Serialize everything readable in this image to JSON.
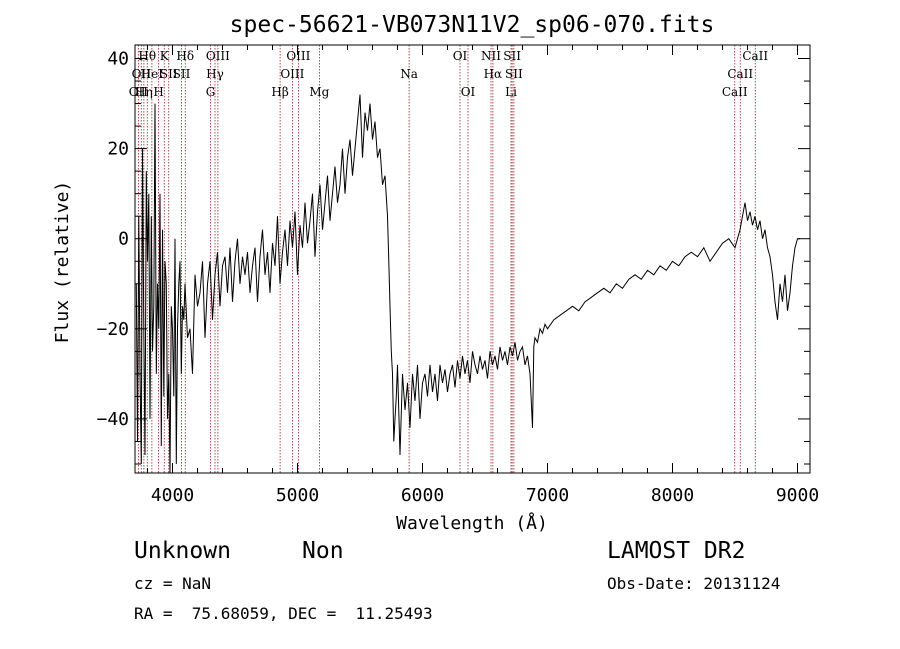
{
  "chart_data": {
    "type": "line",
    "title": "spec-56621-VB073N11V2_sp06-070.fits",
    "xlabel": "Wavelength (Å)",
    "ylabel": "Flux (relative)",
    "xlim": [
      3700,
      9100
    ],
    "ylim": [
      -52,
      43
    ],
    "xticks": [
      4000,
      5000,
      6000,
      7000,
      8000,
      9000
    ],
    "yticks": [
      -40,
      -20,
      0,
      20,
      40
    ],
    "xticks_labels": [
      "4000",
      "5000",
      "6000",
      "7000",
      "8000",
      "9000"
    ],
    "yticks_labels": [
      "−40",
      "−20",
      "0",
      "20",
      "40"
    ],
    "x_minor_step": 200,
    "y_minor_step": 5,
    "grid": false,
    "line_color": "#000000",
    "marker_color": "#a02020",
    "series": [
      {
        "x": [
          3710,
          3720,
          3730,
          3740,
          3750,
          3760,
          3770,
          3780,
          3790,
          3800,
          3810,
          3820,
          3830,
          3840,
          3850,
          3860,
          3870,
          3880,
          3890,
          3900,
          3910,
          3920,
          3930,
          3940,
          3950,
          3960,
          3970,
          3980,
          3990,
          4000,
          4010,
          4020,
          4030,
          4040,
          4050,
          4060,
          4070,
          4080,
          4090,
          4100,
          4120,
          4140,
          4160,
          4180,
          4200,
          4220,
          4240,
          4260,
          4280,
          4300,
          4320,
          4340,
          4360,
          4380,
          4400,
          4420,
          4440,
          4460,
          4480,
          4500,
          4520,
          4540,
          4560,
          4580,
          4600,
          4620,
          4640,
          4660,
          4680,
          4700,
          4720,
          4740,
          4760,
          4780,
          4800,
          4820,
          4840,
          4860,
          4880,
          4900,
          4920,
          4940,
          4960,
          4980,
          5000,
          5020,
          5040,
          5060,
          5080,
          5100,
          5120,
          5140,
          5160,
          5180,
          5200,
          5220,
          5240,
          5260,
          5280,
          5300,
          5320,
          5340,
          5360,
          5380,
          5400,
          5420,
          5440,
          5460,
          5480,
          5500,
          5520,
          5540,
          5560,
          5580,
          5600,
          5620,
          5640,
          5660,
          5680,
          5700,
          5720,
          5730,
          5740,
          5750,
          5760,
          5770,
          5780,
          5790,
          5800,
          5820,
          5840,
          5860,
          5880,
          5900,
          5920,
          5940,
          5960,
          5980,
          6000,
          6020,
          6040,
          6060,
          6080,
          6100,
          6120,
          6140,
          6160,
          6180,
          6200,
          6220,
          6240,
          6260,
          6280,
          6300,
          6320,
          6340,
          6360,
          6380,
          6400,
          6420,
          6440,
          6460,
          6480,
          6500,
          6520,
          6540,
          6560,
          6580,
          6600,
          6620,
          6640,
          6660,
          6680,
          6700,
          6720,
          6740,
          6760,
          6780,
          6800,
          6820,
          6840,
          6860,
          6880,
          6890,
          6900,
          6920,
          6940,
          6960,
          6980,
          7000,
          7050,
          7100,
          7150,
          7200,
          7250,
          7300,
          7350,
          7400,
          7450,
          7500,
          7550,
          7600,
          7650,
          7700,
          7750,
          7800,
          7850,
          7900,
          7950,
          8000,
          8050,
          8100,
          8150,
          8200,
          8250,
          8300,
          8350,
          8400,
          8450,
          8500,
          8520,
          8540,
          8560,
          8580,
          8600,
          8620,
          8640,
          8660,
          8680,
          8700,
          8720,
          8740,
          8760,
          8780,
          8800,
          8820,
          8840,
          8860,
          8880,
          8900,
          8920,
          8940,
          8960,
          8980,
          9000,
          9020
        ],
        "y": [
          -10,
          -45,
          5,
          -30,
          -50,
          20,
          -20,
          -48,
          15,
          -5,
          10,
          -40,
          5,
          -25,
          -15,
          30,
          -30,
          -10,
          -20,
          10,
          -46,
          2,
          -35,
          -5,
          -10,
          -40,
          -30,
          -52,
          -15,
          -20,
          -35,
          0,
          -50,
          -20,
          -10,
          -5,
          -30,
          -15,
          -18,
          -10,
          -22,
          -20,
          -30,
          -8,
          -15,
          -12,
          -5,
          -22,
          -10,
          -5,
          -18,
          -8,
          -3,
          -15,
          -6,
          -4,
          -12,
          -2,
          -14,
          -5,
          0,
          -10,
          -4,
          -8,
          -3,
          -12,
          -6,
          -2,
          -14,
          -4,
          2,
          -8,
          -3,
          -12,
          -1,
          -6,
          5,
          -10,
          -3,
          2,
          -6,
          4,
          -2,
          6,
          -8,
          3,
          -2,
          8,
          -1,
          4,
          10,
          -4,
          6,
          12,
          2,
          8,
          14,
          4,
          10,
          16,
          8,
          12,
          20,
          10,
          18,
          22,
          14,
          20,
          26,
          32,
          18,
          28,
          24,
          30,
          22,
          26,
          18,
          20,
          12,
          14,
          5,
          -5,
          -15,
          -25,
          -30,
          -45,
          -40,
          -35,
          -28,
          -48,
          -30,
          -38,
          -32,
          -42,
          -30,
          -36,
          -28,
          -40,
          -32,
          -30,
          -35,
          -28,
          -34,
          -30,
          -36,
          -28,
          -32,
          -29,
          -34,
          -30,
          -28,
          -33,
          -27,
          -31,
          -26,
          -30,
          -27,
          -32,
          -25,
          -28,
          -30,
          -26,
          -29,
          -27,
          -31,
          -25,
          -28,
          -26,
          -29,
          -24,
          -27,
          -25,
          -28,
          -24,
          -26,
          -23,
          -27,
          -25,
          -24,
          -28,
          -26,
          -30,
          -42,
          -24,
          -22,
          -23,
          -20,
          -21,
          -19,
          -20,
          -18,
          -17,
          -16,
          -15,
          -16,
          -14,
          -13,
          -12,
          -11,
          -12,
          -10,
          -11,
          -9,
          -8,
          -9,
          -7,
          -8,
          -6,
          -7,
          -5,
          -6,
          -4,
          -3,
          -4,
          -2,
          -5,
          -3,
          -1,
          0,
          -2,
          0,
          2,
          5,
          8,
          4,
          6,
          3,
          5,
          2,
          4,
          0,
          2,
          -2,
          -4,
          -8,
          -14,
          -18,
          -10,
          -14,
          -8,
          -16,
          -12,
          -6,
          -2,
          0,
          0
        ]
      }
    ],
    "lines": [
      {
        "x": 3727,
        "label": "OII",
        "row": 2
      },
      {
        "x": 3750,
        "label": "OII",
        "row": 1
      },
      {
        "x": 3771,
        "label": "Hη",
        "row": 2
      },
      {
        "x": 3798,
        "label": "Hθ",
        "row": 0
      },
      {
        "x": 3835,
        "label": "HeI",
        "row": 1
      },
      {
        "x": 3889,
        "label": "H",
        "row": 2
      },
      {
        "x": 3934,
        "label": "K",
        "row": 0
      },
      {
        "x": 3970,
        "label": "SII",
        "row": 1
      },
      {
        "x": 4102,
        "label": "Hδ",
        "row": 0
      },
      {
        "x": 4072,
        "label": "SII",
        "row": 1
      },
      {
        "x": 4304,
        "label": "G",
        "row": 2
      },
      {
        "x": 4340,
        "label": "Hγ",
        "row": 1
      },
      {
        "x": 4363,
        "label": "OIII",
        "row": 0
      },
      {
        "x": 4861,
        "label": "Hβ",
        "row": 2
      },
      {
        "x": 4959,
        "label": "OIII",
        "row": 1
      },
      {
        "x": 5007,
        "label": "OIII",
        "row": 0
      },
      {
        "x": 5175,
        "label": "Mg",
        "row": 2
      },
      {
        "x": 5893,
        "label": "Na",
        "row": 1
      },
      {
        "x": 6300,
        "label": "OI",
        "row": 0
      },
      {
        "x": 6364,
        "label": "OI",
        "row": 2
      },
      {
        "x": 6548,
        "label": "NII",
        "row": 0
      },
      {
        "x": 6563,
        "label": "Hα",
        "row": 1
      },
      {
        "x": 6717,
        "label": "SII",
        "row": 0
      },
      {
        "x": 6731,
        "label": "SII",
        "row": 1
      },
      {
        "x": 6708,
        "label": "Li",
        "row": 2
      },
      {
        "x": 8498,
        "label": "CaII",
        "row": 2
      },
      {
        "x": 8542,
        "label": "CaII",
        "row": 1
      },
      {
        "x": 8662,
        "label": "CaII",
        "row": 0
      }
    ]
  },
  "info": {
    "object_class": "Unknown",
    "subclass": "Non",
    "survey": "LAMOST DR2",
    "redshift": "cz = NaN",
    "obs_date": "Obs-Date: 20131124",
    "coords": "RA =  75.68059, DEC =  11.25493"
  }
}
